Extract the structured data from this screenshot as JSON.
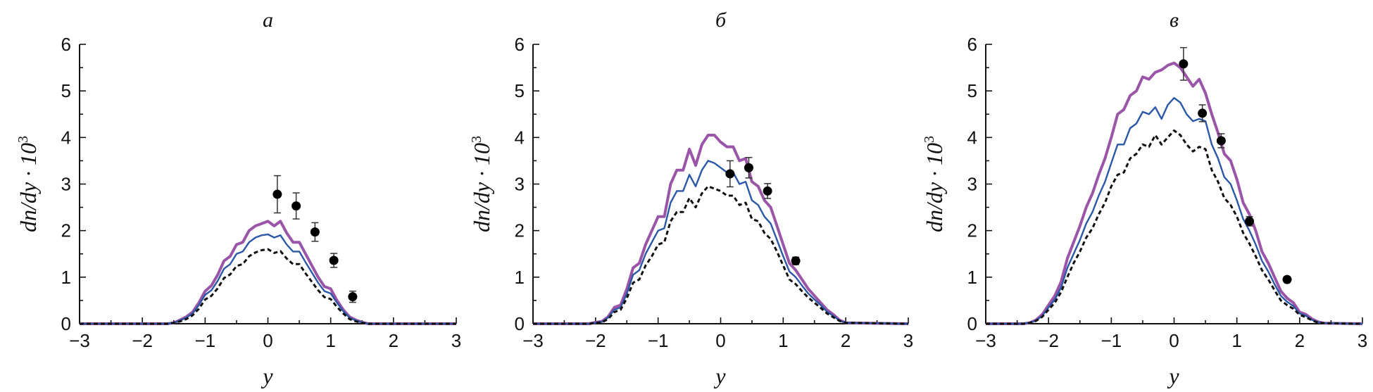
{
  "chart_data": [
    {
      "type": "line",
      "title": "а",
      "xlabel": "y",
      "ylabel": "dn/dy · 10",
      "ylabel_exponent": "3",
      "xlim": [
        -3,
        3
      ],
      "ylim": [
        0,
        6
      ],
      "xticks": [
        -3,
        -2,
        -1,
        0,
        1,
        2,
        3
      ],
      "yticks": [
        0,
        1,
        2,
        3,
        4,
        5,
        6
      ],
      "grid": false,
      "series": [
        {
          "style": "solid-thick",
          "color": "#9b55a8",
          "x": [
            -3.0,
            -1.6,
            -1.5,
            -1.4,
            -1.3,
            -1.2,
            -1.1,
            -1.0,
            -0.9,
            -0.8,
            -0.7,
            -0.6,
            -0.5,
            -0.4,
            -0.3,
            -0.2,
            -0.1,
            0.0,
            0.1,
            0.2,
            0.3,
            0.4,
            0.5,
            0.6,
            0.7,
            0.8,
            0.9,
            1.0,
            1.1,
            1.2,
            1.3,
            1.4,
            1.5,
            1.6,
            3.0
          ],
          "y": [
            0,
            0,
            0.02,
            0.08,
            0.15,
            0.25,
            0.45,
            0.7,
            0.82,
            1.05,
            1.35,
            1.45,
            1.7,
            1.75,
            2.0,
            2.1,
            2.15,
            2.2,
            2.1,
            2.2,
            1.95,
            1.75,
            1.75,
            1.5,
            1.25,
            1.0,
            0.8,
            0.75,
            0.5,
            0.3,
            0.15,
            0.08,
            0.03,
            0,
            0
          ]
        },
        {
          "style": "solid",
          "color": "#2a57a6",
          "x": [
            -3.0,
            -1.6,
            -1.5,
            -1.4,
            -1.3,
            -1.2,
            -1.1,
            -1.0,
            -0.9,
            -0.8,
            -0.7,
            -0.6,
            -0.5,
            -0.4,
            -0.3,
            -0.2,
            -0.1,
            0.0,
            0.1,
            0.2,
            0.3,
            0.4,
            0.5,
            0.6,
            0.7,
            0.8,
            0.9,
            1.0,
            1.1,
            1.2,
            1.3,
            1.4,
            1.5,
            1.6,
            3.0
          ],
          "y": [
            0,
            0,
            0.02,
            0.07,
            0.13,
            0.22,
            0.4,
            0.62,
            0.72,
            0.92,
            1.18,
            1.28,
            1.5,
            1.55,
            1.75,
            1.85,
            1.9,
            1.92,
            1.85,
            1.9,
            1.7,
            1.55,
            1.55,
            1.32,
            1.1,
            0.88,
            0.7,
            0.65,
            0.45,
            0.27,
            0.13,
            0.07,
            0.03,
            0,
            0
          ]
        },
        {
          "style": "dashed",
          "color": "#111111",
          "x": [
            -3.0,
            -1.6,
            -1.5,
            -1.4,
            -1.3,
            -1.2,
            -1.1,
            -1.0,
            -0.9,
            -0.8,
            -0.7,
            -0.6,
            -0.5,
            -0.4,
            -0.3,
            -0.2,
            -0.1,
            0.0,
            0.1,
            0.2,
            0.3,
            0.4,
            0.5,
            0.6,
            0.7,
            0.8,
            0.9,
            1.0,
            1.1,
            1.2,
            1.3,
            1.4,
            1.5,
            1.6,
            3.0
          ],
          "y": [
            0,
            0,
            0.02,
            0.05,
            0.1,
            0.18,
            0.32,
            0.52,
            0.6,
            0.76,
            0.98,
            1.06,
            1.24,
            1.28,
            1.45,
            1.53,
            1.58,
            1.6,
            1.52,
            1.56,
            1.4,
            1.28,
            1.28,
            1.08,
            0.9,
            0.72,
            0.57,
            0.53,
            0.36,
            0.22,
            0.1,
            0.05,
            0.02,
            0,
            0
          ]
        }
      ],
      "points": {
        "x": [
          0.15,
          0.45,
          0.75,
          1.05,
          1.35
        ],
        "y": [
          2.78,
          2.53,
          1.97,
          1.36,
          0.58
        ],
        "err": [
          0.4,
          0.28,
          0.2,
          0.15,
          0.12
        ]
      }
    },
    {
      "type": "line",
      "title": "б",
      "xlabel": "y",
      "ylabel": "dn/dy · 10",
      "ylabel_exponent": "3",
      "xlim": [
        -3,
        3
      ],
      "ylim": [
        0,
        6
      ],
      "xticks": [
        -3,
        -2,
        -1,
        0,
        1,
        2,
        3
      ],
      "yticks": [
        0,
        1,
        2,
        3,
        4,
        5,
        6
      ],
      "grid": false,
      "series": [
        {
          "style": "solid-thick",
          "color": "#9b55a8",
          "x": [
            -3.0,
            -2.1,
            -2.0,
            -1.9,
            -1.8,
            -1.7,
            -1.6,
            -1.5,
            -1.4,
            -1.3,
            -1.2,
            -1.1,
            -1.0,
            -0.9,
            -0.8,
            -0.7,
            -0.6,
            -0.5,
            -0.4,
            -0.3,
            -0.2,
            -0.1,
            0.0,
            0.1,
            0.2,
            0.3,
            0.4,
            0.5,
            0.6,
            0.7,
            0.8,
            0.9,
            1.0,
            1.1,
            1.2,
            1.3,
            1.4,
            1.5,
            1.6,
            1.7,
            1.8,
            1.9,
            2.0,
            3.0
          ],
          "y": [
            0,
            0,
            0.03,
            0.05,
            0.15,
            0.35,
            0.4,
            0.75,
            1.2,
            1.3,
            1.7,
            2.0,
            2.3,
            2.3,
            3.0,
            3.3,
            3.3,
            3.75,
            3.4,
            3.85,
            4.05,
            4.05,
            3.9,
            3.8,
            3.8,
            3.5,
            3.55,
            3.05,
            2.95,
            2.65,
            2.5,
            2.1,
            1.7,
            1.3,
            1.15,
            0.95,
            0.75,
            0.6,
            0.45,
            0.3,
            0.2,
            0.08,
            0.02,
            0
          ]
        },
        {
          "style": "solid",
          "color": "#2a57a6",
          "x": [
            -3.0,
            -2.1,
            -2.0,
            -1.9,
            -1.8,
            -1.7,
            -1.6,
            -1.5,
            -1.4,
            -1.3,
            -1.2,
            -1.1,
            -1.0,
            -0.9,
            -0.8,
            -0.7,
            -0.6,
            -0.5,
            -0.4,
            -0.3,
            -0.2,
            -0.1,
            0.0,
            0.1,
            0.2,
            0.3,
            0.4,
            0.5,
            0.6,
            0.7,
            0.8,
            0.9,
            1.0,
            1.1,
            1.2,
            1.3,
            1.4,
            1.5,
            1.6,
            1.7,
            1.8,
            1.9,
            2.0,
            3.0
          ],
          "y": [
            0,
            0,
            0.02,
            0.04,
            0.13,
            0.3,
            0.35,
            0.65,
            1.05,
            1.15,
            1.5,
            1.75,
            2.0,
            2.05,
            2.6,
            2.85,
            2.85,
            3.2,
            2.95,
            3.3,
            3.5,
            3.45,
            3.35,
            3.25,
            3.25,
            3.0,
            3.05,
            2.65,
            2.55,
            2.3,
            2.15,
            1.8,
            1.45,
            1.12,
            1.0,
            0.82,
            0.65,
            0.52,
            0.4,
            0.26,
            0.17,
            0.07,
            0.02,
            0
          ]
        },
        {
          "style": "dashed",
          "color": "#111111",
          "x": [
            -3.0,
            -2.1,
            -2.0,
            -1.9,
            -1.8,
            -1.7,
            -1.6,
            -1.5,
            -1.4,
            -1.3,
            -1.2,
            -1.1,
            -1.0,
            -0.9,
            -0.8,
            -0.7,
            -0.6,
            -0.5,
            -0.4,
            -0.3,
            -0.2,
            -0.1,
            0.0,
            0.1,
            0.2,
            0.3,
            0.4,
            0.5,
            0.6,
            0.7,
            0.8,
            0.9,
            1.0,
            1.1,
            1.2,
            1.3,
            1.4,
            1.5,
            1.6,
            1.7,
            1.8,
            1.9,
            2.0,
            3.0
          ],
          "y": [
            0,
            0,
            0.02,
            0.03,
            0.1,
            0.25,
            0.3,
            0.55,
            0.88,
            0.95,
            1.25,
            1.45,
            1.7,
            1.75,
            2.2,
            2.4,
            2.4,
            2.7,
            2.5,
            2.8,
            2.95,
            2.9,
            2.85,
            2.75,
            2.75,
            2.55,
            2.6,
            2.25,
            2.2,
            1.95,
            1.82,
            1.55,
            1.25,
            0.95,
            0.85,
            0.7,
            0.56,
            0.45,
            0.34,
            0.22,
            0.14,
            0.06,
            0.02,
            0
          ]
        }
      ],
      "points": {
        "x": [
          0.15,
          0.45,
          0.75,
          1.2
        ],
        "y": [
          3.22,
          3.35,
          2.85,
          1.35
        ],
        "err": [
          0.28,
          0.22,
          0.16,
          0.08
        ]
      }
    },
    {
      "type": "line",
      "title": "в",
      "xlabel": "y",
      "ylabel": "dn/dy · 10",
      "ylabel_exponent": "3",
      "xlim": [
        -3,
        3
      ],
      "ylim": [
        0,
        6
      ],
      "xticks": [
        -3,
        -2,
        -1,
        0,
        1,
        2,
        3
      ],
      "yticks": [
        0,
        1,
        2,
        3,
        4,
        5,
        6
      ],
      "grid": false,
      "series": [
        {
          "style": "solid-thick",
          "color": "#9b55a8",
          "x": [
            -3.0,
            -2.4,
            -2.3,
            -2.2,
            -2.1,
            -2.0,
            -1.9,
            -1.8,
            -1.7,
            -1.6,
            -1.5,
            -1.4,
            -1.3,
            -1.2,
            -1.1,
            -1.0,
            -0.9,
            -0.8,
            -0.7,
            -0.6,
            -0.5,
            -0.4,
            -0.3,
            -0.2,
            -0.1,
            0.0,
            0.1,
            0.2,
            0.3,
            0.4,
            0.5,
            0.6,
            0.7,
            0.8,
            0.9,
            1.0,
            1.1,
            1.2,
            1.3,
            1.4,
            1.5,
            1.6,
            1.7,
            1.8,
            1.9,
            2.0,
            2.1,
            2.2,
            2.3,
            2.4,
            3.0
          ],
          "y": [
            0,
            0,
            0.02,
            0.08,
            0.2,
            0.4,
            0.6,
            0.9,
            1.4,
            1.75,
            2.1,
            2.5,
            2.8,
            3.2,
            3.55,
            4.0,
            4.5,
            4.6,
            4.9,
            5.0,
            5.3,
            5.25,
            5.4,
            5.45,
            5.55,
            5.6,
            5.5,
            5.3,
            5.1,
            5.25,
            4.95,
            4.5,
            4.1,
            3.65,
            3.5,
            3.1,
            2.6,
            2.35,
            2.0,
            1.55,
            1.3,
            1.0,
            0.7,
            0.55,
            0.45,
            0.25,
            0.2,
            0.1,
            0.04,
            0.01,
            0
          ]
        },
        {
          "style": "solid",
          "color": "#2a57a6",
          "x": [
            -3.0,
            -2.4,
            -2.3,
            -2.2,
            -2.1,
            -2.0,
            -1.9,
            -1.8,
            -1.7,
            -1.6,
            -1.5,
            -1.4,
            -1.3,
            -1.2,
            -1.1,
            -1.0,
            -0.9,
            -0.8,
            -0.7,
            -0.6,
            -0.5,
            -0.4,
            -0.3,
            -0.2,
            -0.1,
            0.0,
            0.1,
            0.2,
            0.3,
            0.4,
            0.5,
            0.6,
            0.7,
            0.8,
            0.9,
            1.0,
            1.1,
            1.2,
            1.3,
            1.4,
            1.5,
            1.6,
            1.7,
            1.8,
            1.9,
            2.0,
            2.1,
            2.2,
            2.3,
            2.4,
            3.0
          ],
          "y": [
            0,
            0,
            0.02,
            0.07,
            0.17,
            0.35,
            0.52,
            0.78,
            1.2,
            1.5,
            1.8,
            2.15,
            2.4,
            2.75,
            3.05,
            3.45,
            3.85,
            3.85,
            4.2,
            4.3,
            4.55,
            4.5,
            4.65,
            4.4,
            4.7,
            4.85,
            4.75,
            4.5,
            4.35,
            4.4,
            4.35,
            3.85,
            3.55,
            3.15,
            3.0,
            2.65,
            2.25,
            2.0,
            1.7,
            1.35,
            1.12,
            0.85,
            0.6,
            0.47,
            0.38,
            0.22,
            0.17,
            0.08,
            0.03,
            0.01,
            0
          ]
        },
        {
          "style": "dashed",
          "color": "#111111",
          "x": [
            -3.0,
            -2.4,
            -2.3,
            -2.2,
            -2.1,
            -2.0,
            -1.9,
            -1.8,
            -1.7,
            -1.6,
            -1.5,
            -1.4,
            -1.3,
            -1.2,
            -1.1,
            -1.0,
            -0.9,
            -0.8,
            -0.7,
            -0.6,
            -0.5,
            -0.4,
            -0.3,
            -0.2,
            -0.1,
            0.0,
            0.1,
            0.2,
            0.3,
            0.4,
            0.5,
            0.6,
            0.7,
            0.8,
            0.9,
            1.0,
            1.1,
            1.2,
            1.3,
            1.4,
            1.5,
            1.6,
            1.7,
            1.8,
            1.9,
            2.0,
            2.1,
            2.2,
            2.3,
            2.4,
            3.0
          ],
          "y": [
            0,
            0,
            0.02,
            0.06,
            0.15,
            0.3,
            0.45,
            0.68,
            1.0,
            1.3,
            1.55,
            1.85,
            2.05,
            2.35,
            2.6,
            2.95,
            3.2,
            3.25,
            3.55,
            3.65,
            3.85,
            3.8,
            4.05,
            3.85,
            4.0,
            4.15,
            4.05,
            3.85,
            3.7,
            3.8,
            3.75,
            3.3,
            3.05,
            2.7,
            2.55,
            2.3,
            1.95,
            1.72,
            1.45,
            1.15,
            0.95,
            0.72,
            0.5,
            0.4,
            0.32,
            0.19,
            0.14,
            0.07,
            0.02,
            0.01,
            0
          ]
        }
      ],
      "points": {
        "x": [
          0.15,
          0.45,
          0.75,
          1.2,
          1.8
        ],
        "y": [
          5.58,
          4.52,
          3.93,
          2.2,
          0.95
        ],
        "err": [
          0.35,
          0.18,
          0.15,
          0.1,
          0.06
        ]
      }
    }
  ]
}
